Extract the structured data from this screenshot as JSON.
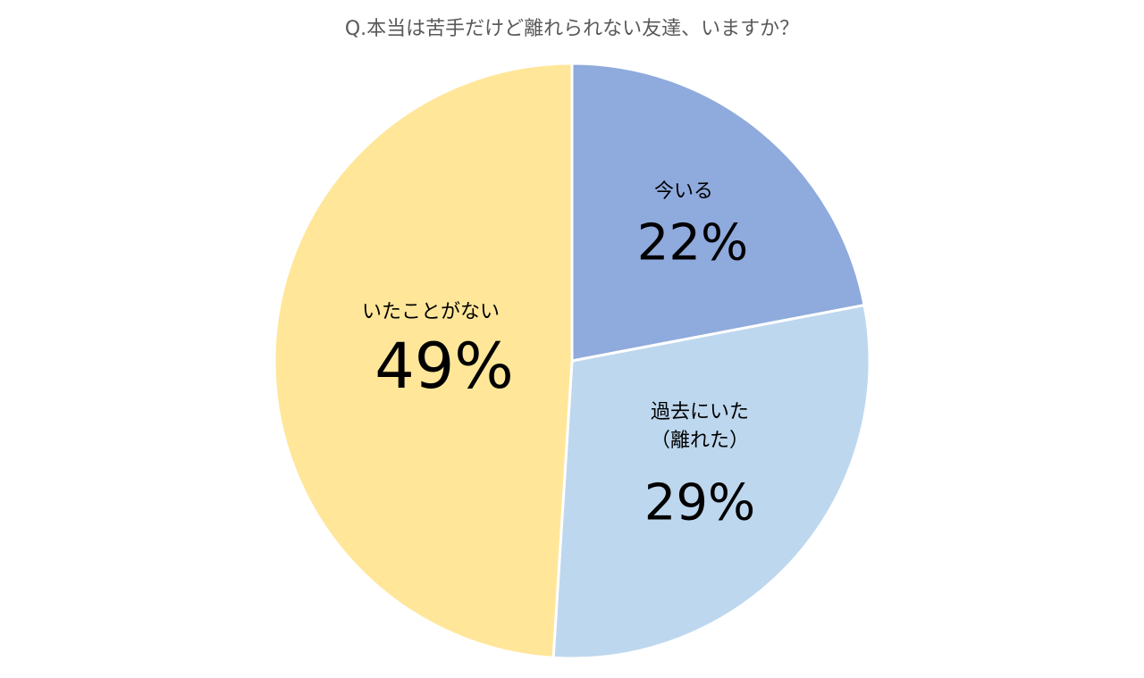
{
  "chart_data": {
    "type": "pie",
    "title": "Q.本当は苦手だけど離れられない友達、いますか？",
    "categories": [
      "今いる",
      "過去にいた\n（離れた）",
      "いたことがない"
    ],
    "values": [
      22,
      29,
      49
    ],
    "value_labels": [
      "22%",
      "29%",
      "49%"
    ],
    "colors": [
      "#8faadc",
      "#bdd7ee",
      "#ffe699"
    ]
  }
}
